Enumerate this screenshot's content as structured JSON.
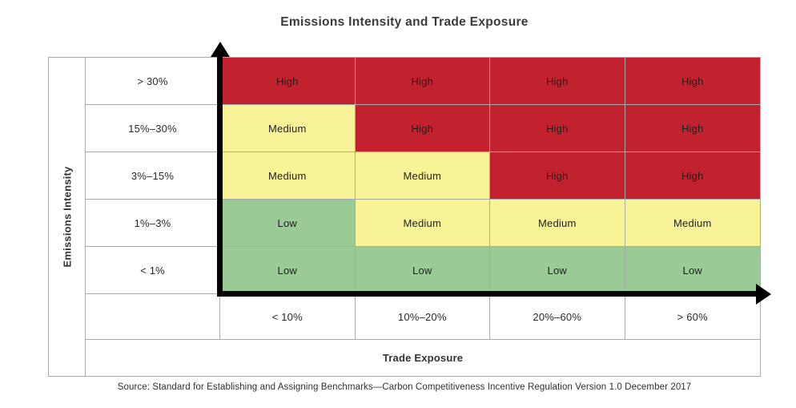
{
  "chart_data": {
    "type": "heatmap",
    "title": "Emissions Intensity and Trade Exposure",
    "y_axis": {
      "label": "Emissions Intensity",
      "categories": [
        "> 30%",
        "15%–30%",
        "3%–15%",
        "1%–3%",
        "< 1%"
      ]
    },
    "x_axis": {
      "label": "Trade Exposure",
      "categories": [
        "< 10%",
        "10%–20%",
        "20%–60%",
        "> 60%"
      ]
    },
    "rows": [
      [
        "High",
        "High",
        "High",
        "High"
      ],
      [
        "Medium",
        "High",
        "High",
        "High"
      ],
      [
        "Medium",
        "Medium",
        "High",
        "High"
      ],
      [
        "Low",
        "Medium",
        "Medium",
        "Medium"
      ],
      [
        "Low",
        "Low",
        "Low",
        "Low"
      ]
    ],
    "level_colors": {
      "High": "#c2222d",
      "Medium": "#f8f396",
      "Low": "#9acb96"
    },
    "grid_color": "#a9a9a9",
    "axis_color": "#000000",
    "legend": "none",
    "source": "Source: Standard for Establishing and Assigning Benchmarks—Carbon Competitiveness Incentive Regulation Version 1.0 December 2017"
  }
}
